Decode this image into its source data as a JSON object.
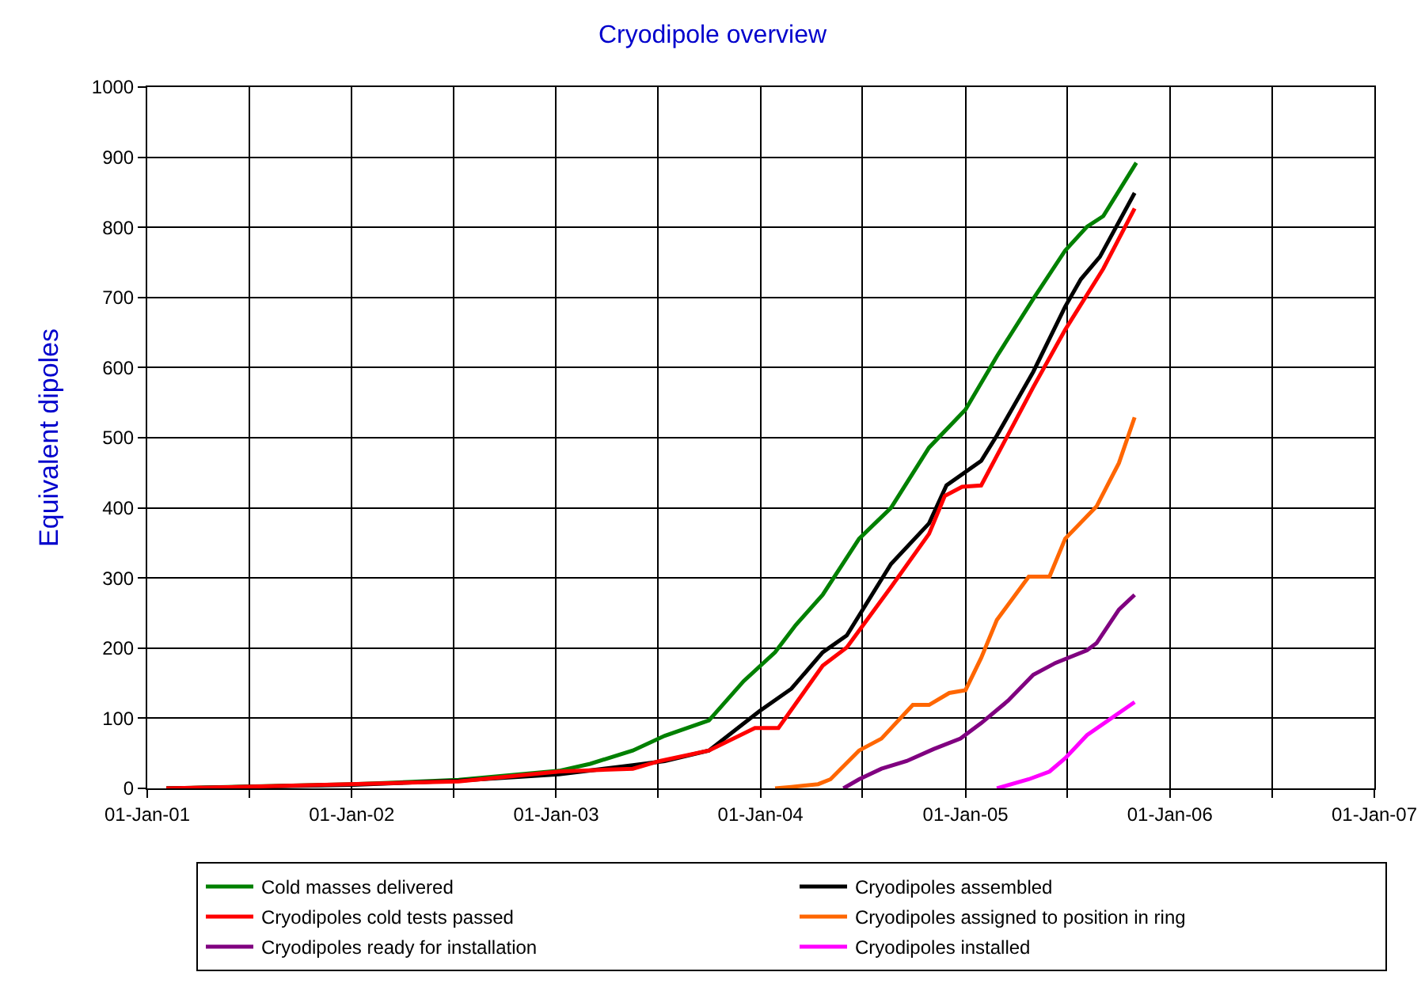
{
  "chart_data": {
    "type": "line",
    "title": "Cryodipole overview",
    "ylabel": "Equivalent dipoles",
    "xlim": [
      "2001-01-01",
      "2007-01-01"
    ],
    "xticks": [
      {
        "value": "2001-01-01",
        "label": "01-Jan-01"
      },
      {
        "value": "2001-07-02",
        "label": null
      },
      {
        "value": "2002-01-01",
        "label": "01-Jan-02"
      },
      {
        "value": "2002-07-02",
        "label": null
      },
      {
        "value": "2003-01-01",
        "label": "01-Jan-03"
      },
      {
        "value": "2003-07-02",
        "label": null
      },
      {
        "value": "2004-01-01",
        "label": "01-Jan-04"
      },
      {
        "value": "2004-07-01",
        "label": null
      },
      {
        "value": "2005-01-01",
        "label": "01-Jan-05"
      },
      {
        "value": "2005-07-02",
        "label": null
      },
      {
        "value": "2006-01-01",
        "label": "01-Jan-06"
      },
      {
        "value": "2006-07-02",
        "label": null
      },
      {
        "value": "2007-01-01",
        "label": "01-Jan-07"
      }
    ],
    "ylim": [
      0,
      1000
    ],
    "yticks": [
      0,
      100,
      200,
      300,
      400,
      500,
      600,
      700,
      800,
      900,
      1000
    ],
    "grid": true,
    "legend": "bottom",
    "marker": "none",
    "line_style": "solid",
    "series": [
      {
        "name": "Cold masses delivered",
        "color": "#008000",
        "x": [
          "2001-02-04",
          "2002-01-04",
          "2002-07-11",
          "2003-01-06",
          "2003-03-03",
          "2003-05-18",
          "2003-07-14",
          "2003-10-01",
          "2003-12-02",
          "2004-01-27",
          "2004-03-04",
          "2004-04-21",
          "2004-06-25",
          "2004-08-21",
          "2004-10-28",
          "2005-01-01",
          "2005-02-26",
          "2005-05-02",
          "2005-06-28",
          "2005-08-06",
          "2005-09-04",
          "2005-11-02"
        ],
        "values": [
          0,
          6,
          12,
          25,
          35,
          54,
          75,
          97,
          153,
          194,
          233,
          276,
          356,
          400,
          486,
          540,
          616,
          698,
          767,
          801,
          816,
          892
        ]
      },
      {
        "name": "Cryodipoles assembled",
        "color": "#000000",
        "x": [
          "2001-02-04",
          "2002-01-04",
          "2002-07-11",
          "2003-01-06",
          "2003-05-18",
          "2003-07-14",
          "2003-10-01",
          "2003-12-30",
          "2004-02-25",
          "2004-04-21",
          "2004-06-03",
          "2004-08-21",
          "2004-10-28",
          "2004-11-28",
          "2005-01-29",
          "2005-02-26",
          "2005-05-02",
          "2005-06-28",
          "2005-07-26",
          "2005-08-29",
          "2005-10-30"
        ],
        "values": [
          0,
          5,
          11,
          20,
          33,
          39,
          54,
          110,
          142,
          194,
          218,
          320,
          378,
          432,
          467,
          503,
          594,
          687,
          726,
          758,
          849
        ]
      },
      {
        "name": "Cryodipoles cold tests passed",
        "color": "#ff0000",
        "x": [
          "2001-02-04",
          "2001-06-11",
          "2002-07-11",
          "2003-01-06",
          "2003-05-18",
          "2003-07-05",
          "2003-10-01",
          "2003-12-22",
          "2004-02-02",
          "2004-04-21",
          "2004-06-03",
          "2004-08-21",
          "2004-10-28",
          "2004-11-25",
          "2004-12-26",
          "2005-01-29",
          "2005-05-02",
          "2005-06-28",
          "2005-09-04",
          "2005-10-30"
        ],
        "values": [
          0,
          2,
          10,
          24,
          28,
          39,
          54,
          86,
          86,
          175,
          201,
          287,
          363,
          417,
          430,
          432,
          572,
          654,
          741,
          827
        ]
      },
      {
        "name": "Cryodipoles assigned to position in ring",
        "color": "#ff6600",
        "x": [
          "2004-01-27",
          "2004-02-25",
          "2004-04-13",
          "2004-05-05",
          "2004-06-25",
          "2004-08-04",
          "2004-09-29",
          "2004-10-28",
          "2004-12-03",
          "2005-01-01",
          "2005-01-29",
          "2005-02-26",
          "2005-04-24",
          "2005-05-31",
          "2005-06-28",
          "2005-08-23",
          "2005-10-02",
          "2005-10-30"
        ],
        "values": [
          0,
          2,
          6,
          13,
          54,
          71,
          119,
          119,
          136,
          140,
          186,
          240,
          302,
          302,
          356,
          402,
          464,
          529
        ]
      },
      {
        "name": "Cryodipoles ready for installation",
        "color": "#800080",
        "x": [
          "2004-05-28",
          "2004-06-25",
          "2004-08-04",
          "2004-09-18",
          "2004-11-05",
          "2004-12-23",
          "2005-01-29",
          "2005-03-18",
          "2005-05-02",
          "2005-06-11",
          "2005-08-06",
          "2005-08-23",
          "2005-10-02",
          "2005-10-30"
        ],
        "values": [
          0,
          13,
          28,
          39,
          56,
          71,
          93,
          125,
          162,
          179,
          197,
          207,
          255,
          276
        ]
      },
      {
        "name": "Cryodipoles installed",
        "color": "#ff00ff",
        "x": [
          "2005-02-26",
          "2005-04-24",
          "2005-05-31",
          "2005-06-28",
          "2005-08-06",
          "2005-10-30"
        ],
        "values": [
          0,
          13,
          24,
          43,
          76,
          123
        ]
      }
    ]
  }
}
